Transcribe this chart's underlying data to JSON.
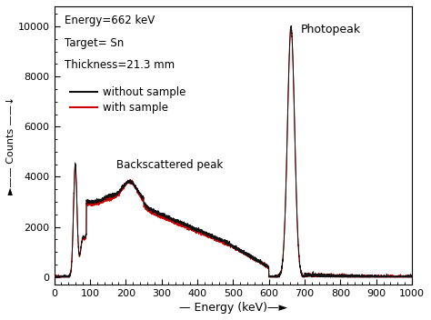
{
  "xlabel": "— Energy (keV)—►",
  "ylabel": "►—— Counts ——↓",
  "xlim": [
    0,
    1000
  ],
  "ylim": [
    -300,
    10800
  ],
  "yticks": [
    0,
    2000,
    4000,
    6000,
    8000,
    10000
  ],
  "xticks": [
    0,
    100,
    200,
    300,
    400,
    500,
    600,
    700,
    800,
    900,
    1000
  ],
  "annotation_photopeak": "Photopeak",
  "annotation_backscattered": "Backscattered peak",
  "annotation_energy": "Energy=662 keV",
  "annotation_target": "Target= Sn",
  "annotation_thickness": "Thickness=21.3 mm",
  "legend_without": "without sample",
  "legend_with": "with sample",
  "color_without": "#111111",
  "color_with": "#cc0000",
  "background": "#ffffff"
}
